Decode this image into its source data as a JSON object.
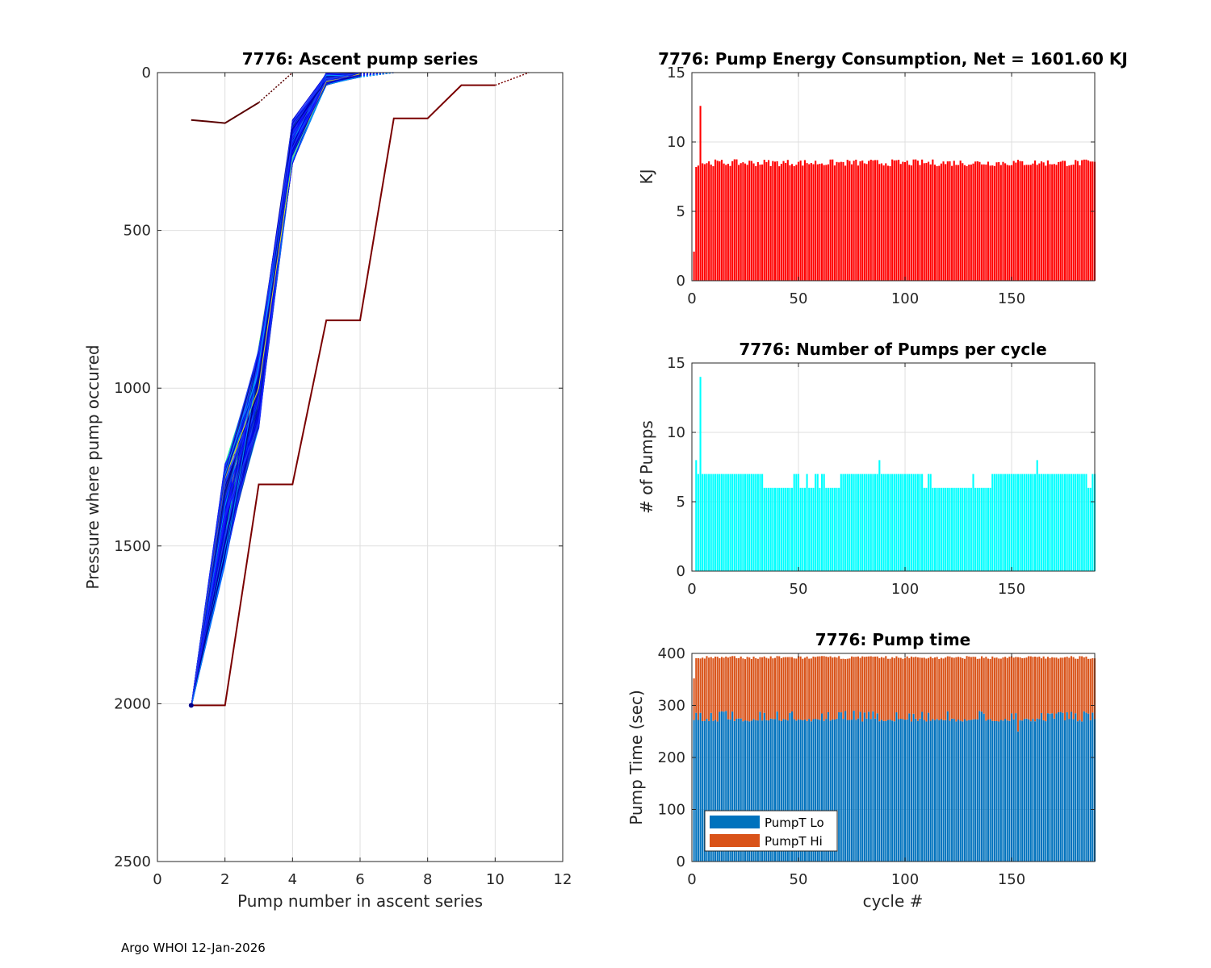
{
  "footer": "Argo WHOI 12-Jan-2026",
  "chart_data": [
    {
      "id": "ascent",
      "type": "line",
      "title": "7776: Ascent pump series",
      "xlabel": "Pump number in ascent series",
      "ylabel": "Pressure where pump occured",
      "xlim": [
        0,
        12
      ],
      "ylim": [
        0,
        2500
      ],
      "y_reversed": true,
      "xticks": [
        0,
        2,
        4,
        6,
        8,
        10,
        12
      ],
      "yticks": [
        0,
        500,
        1000,
        1500,
        2000,
        2500
      ],
      "grid": true,
      "bundle": {
        "count": 185,
        "start": [
          1,
          2010
        ],
        "knot2": [
          2,
          1400
        ],
        "knot4_range": [
          150,
          290
        ],
        "knot5_range": [
          0,
          40
        ],
        "knot6_range": [
          0,
          15
        ],
        "colors": [
          "#00008b",
          "#0000cd",
          "#0000ff",
          "#1e3cff",
          "#003399",
          "#1a1aff",
          "#00aaff",
          "#ffff00",
          "#00ff88"
        ]
      },
      "series": [
        {
          "name": "outlier",
          "color": "#7a0000",
          "x": [
            1,
            2,
            3,
            4,
            5,
            6,
            7,
            8,
            9,
            10
          ],
          "y": [
            2005,
            2005,
            1305,
            1305,
            785,
            785,
            145,
            145,
            40,
            40
          ]
        },
        {
          "name": "first-cycle",
          "color": "#5a0000",
          "x": [
            1,
            2,
            3
          ],
          "y": [
            150,
            160,
            95
          ]
        }
      ]
    },
    {
      "id": "energy",
      "type": "bar",
      "title": "7776: Pump Energy Consumption,  Net = 1601.60 KJ",
      "xlabel": "",
      "ylabel": "KJ",
      "xlim": [
        0,
        189
      ],
      "ylim": [
        0,
        15
      ],
      "xticks": [
        0,
        50,
        100,
        150
      ],
      "yticks": [
        0,
        5,
        10,
        15
      ],
      "color": "#ff0000",
      "cycles": 189,
      "special_values": {
        "1": 2.1,
        "2": 8.2,
        "3": 8.3,
        "4": 12.6
      },
      "typical_value": 8.5
    },
    {
      "id": "pumps",
      "type": "bar",
      "title": "7776: Number of Pumps per cycle",
      "xlabel": "",
      "ylabel": "# of Pumps",
      "xlim": [
        0,
        189
      ],
      "ylim": [
        0,
        15
      ],
      "xticks": [
        0,
        50,
        100,
        150
      ],
      "yticks": [
        0,
        5,
        10,
        15
      ],
      "color": "#00ffff",
      "cycles": 189,
      "runs": [
        [
          1,
          1,
          0
        ],
        [
          2,
          2,
          8
        ],
        [
          3,
          3,
          7
        ],
        [
          4,
          4,
          14
        ],
        [
          5,
          33,
          7
        ],
        [
          34,
          47,
          6
        ],
        [
          48,
          50,
          7
        ],
        [
          51,
          53,
          6
        ],
        [
          54,
          54,
          7
        ],
        [
          55,
          57,
          6
        ],
        [
          58,
          59,
          7
        ],
        [
          60,
          60,
          6
        ],
        [
          61,
          62,
          7
        ],
        [
          63,
          69,
          6
        ],
        [
          70,
          87,
          7
        ],
        [
          88,
          88,
          8
        ],
        [
          89,
          108,
          7
        ],
        [
          109,
          110,
          6
        ],
        [
          111,
          112,
          7
        ],
        [
          113,
          131,
          6
        ],
        [
          132,
          132,
          7
        ],
        [
          133,
          140,
          6
        ],
        [
          141,
          161,
          7
        ],
        [
          162,
          162,
          8
        ],
        [
          163,
          185,
          7
        ],
        [
          186,
          187,
          6
        ],
        [
          188,
          189,
          7
        ]
      ]
    },
    {
      "id": "pumptime",
      "type": "bar",
      "stacked": true,
      "title": "7776: Pump time",
      "xlabel": "cycle #",
      "ylabel": "Pump Time (sec)",
      "xlim": [
        0,
        189
      ],
      "ylim": [
        0,
        400
      ],
      "xticks": [
        0,
        50,
        100,
        150
      ],
      "yticks": [
        0,
        100,
        200,
        300,
        400
      ],
      "legend_position": "bottom-left",
      "cycles": 189,
      "series": [
        {
          "name": "PumpT Lo",
          "color": "#0072bd",
          "typical_value": 272
        },
        {
          "name": "PumpT Hi",
          "color": "#d95319",
          "typical_total": 392
        }
      ]
    }
  ]
}
